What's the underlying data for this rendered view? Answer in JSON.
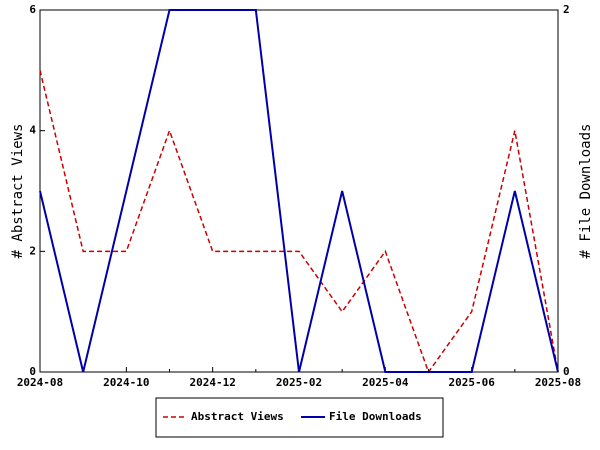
{
  "chart_data": {
    "type": "line",
    "categories": [
      "2024-08",
      null,
      "2024-10",
      null,
      "2024-12",
      null,
      "2025-02",
      null,
      "2025-04",
      null,
      "2025-06",
      null,
      "2025-08"
    ],
    "ylabel": "# Abstract Views",
    "y2label": "# File Downloads",
    "ylim": [
      0,
      6
    ],
    "yticks": [
      0,
      2,
      4,
      6
    ],
    "y2lim": [
      0,
      2
    ],
    "y2ticks": [
      0,
      2
    ],
    "legend": "bottom",
    "series": [
      {
        "name": "Abstract Views",
        "color": "#cc0000",
        "dash": true,
        "values": [
          5,
          2,
          2,
          4,
          2,
          2,
          2,
          1,
          2,
          0,
          1,
          4,
          0
        ]
      },
      {
        "name": "File Downloads",
        "color": "#0000aa",
        "axis": "y2",
        "values": [
          1,
          0,
          1,
          2,
          2,
          2,
          0,
          1,
          0,
          0,
          0,
          1,
          0
        ]
      }
    ]
  }
}
